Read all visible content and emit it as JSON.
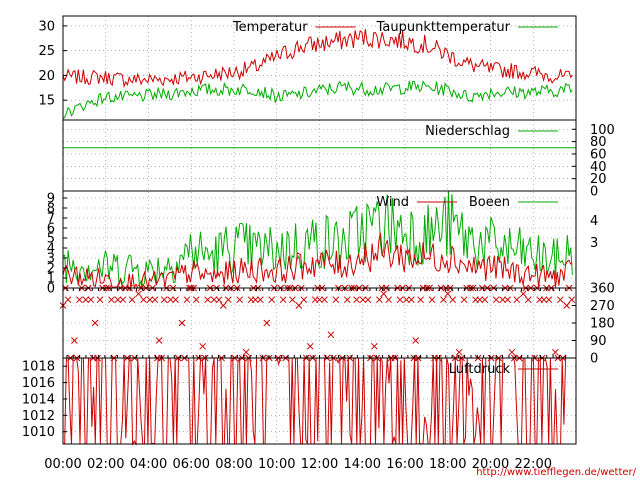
{
  "chart_data": [
    {
      "type": "line",
      "panel": "temperature",
      "title": "",
      "xlabel": "",
      "ylabel": "",
      "ylim": [
        11,
        32
      ],
      "yticks": [
        "15",
        "20",
        "25",
        "30"
      ],
      "grid": true,
      "legend_placement": "top-right",
      "x": [
        "00:00",
        "01:00",
        "02:00",
        "03:00",
        "04:00",
        "05:00",
        "06:00",
        "07:00",
        "08:00",
        "09:00",
        "10:00",
        "11:00",
        "12:00",
        "13:00",
        "14:00",
        "15:00",
        "16:00",
        "17:00",
        "18:00",
        "19:00",
        "20:00",
        "21:00",
        "22:00",
        "23:00",
        "23:50"
      ],
      "series": [
        {
          "name": "Temperatur",
          "color": "#cc0000",
          "values": [
            19.5,
            19.5,
            19.5,
            19.0,
            19.0,
            19.2,
            19.5,
            20.0,
            20.5,
            21.5,
            23.5,
            25.5,
            26.2,
            26.8,
            27.5,
            27.2,
            26.8,
            26.0,
            24.0,
            22.0,
            21.0,
            20.8,
            20.3,
            19.8,
            19.2
          ]
        },
        {
          "name": "Taupunkttemperatur",
          "color": "#00aa00",
          "values": [
            12.0,
            14.0,
            15.5,
            15.5,
            15.8,
            16.2,
            16.8,
            17.0,
            17.0,
            17.2,
            15.5,
            16.0,
            16.8,
            17.5,
            17.2,
            17.0,
            17.5,
            17.5,
            17.0,
            15.5,
            16.5,
            16.5,
            16.5,
            16.8,
            17.2
          ]
        }
      ]
    },
    {
      "type": "line",
      "panel": "precipitation",
      "title": "",
      "xlabel": "",
      "ylabel": "",
      "ylim": [
        0,
        115
      ],
      "yticks": [
        "0",
        "20",
        "40",
        "60",
        "80",
        "100"
      ],
      "grid": true,
      "legend_placement": "top-right",
      "series": [
        {
          "name": "Niederschlag",
          "color": "#00aa00",
          "constant_value": 70
        }
      ]
    },
    {
      "type": "line",
      "panel": "wind",
      "title": "",
      "xlabel": "",
      "ylabel": "",
      "ylim": [
        0,
        9.7
      ],
      "yticks": [
        "0",
        "1",
        "2",
        "3",
        "4",
        "5",
        "6",
        "7",
        "8",
        "9"
      ],
      "yticks_right": [
        "3",
        "4"
      ],
      "grid": true,
      "legend_placement": "top-right",
      "x": [
        "00:00",
        "01:00",
        "02:00",
        "03:00",
        "04:00",
        "05:00",
        "06:00",
        "07:00",
        "08:00",
        "09:00",
        "10:00",
        "11:00",
        "12:00",
        "13:00",
        "14:00",
        "15:00",
        "16:00",
        "17:00",
        "18:00",
        "19:00",
        "20:00",
        "21:00",
        "22:00",
        "23:00",
        "23:50"
      ],
      "series": [
        {
          "name": "Wind",
          "color": "#cc0000",
          "values": [
            1.2,
            1.0,
            0.8,
            0.6,
            0.5,
            0.8,
            1.5,
            1.0,
            1.5,
            1.8,
            1.5,
            2.0,
            2.5,
            2.0,
            3.0,
            3.5,
            3.0,
            2.8,
            3.2,
            2.0,
            2.0,
            1.5,
            1.2,
            1.0,
            1.5
          ]
        },
        {
          "name": "Boeen",
          "color": "#00aa00",
          "values": [
            2.5,
            2.2,
            1.8,
            2.0,
            1.5,
            2.2,
            3.5,
            3.0,
            4.0,
            3.5,
            3.5,
            4.0,
            4.5,
            4.0,
            5.5,
            6.0,
            5.5,
            5.0,
            6.0,
            4.5,
            4.0,
            3.5,
            3.0,
            2.5,
            3.5
          ]
        }
      ]
    },
    {
      "type": "scatter",
      "panel": "wind-direction",
      "title": "",
      "xlabel": "",
      "ylabel": "",
      "ylim": [
        0,
        360
      ],
      "yticks_right": [
        "0",
        "90",
        "180",
        "270",
        "360"
      ],
      "grid": true,
      "legend_placement": "none",
      "marker": "x",
      "color": "#cc0000",
      "x": [
        "00:00",
        "00:30",
        "01:00",
        "01:30",
        "02:00",
        "02:30",
        "03:00",
        "03:30",
        "04:00",
        "04:30",
        "05:00",
        "05:30",
        "06:00",
        "06:30",
        "07:00",
        "07:30",
        "08:00",
        "08:30",
        "09:00",
        "09:30",
        "10:00",
        "10:30",
        "11:00",
        "11:30",
        "12:00",
        "12:30",
        "13:00",
        "13:30",
        "14:00",
        "14:30",
        "15:00",
        "15:30",
        "16:00",
        "16:30",
        "17:00",
        "17:30",
        "18:00",
        "18:30",
        "19:00",
        "19:30",
        "20:00",
        "20:30",
        "21:00",
        "21:30",
        "22:00",
        "22:30",
        "23:00",
        "23:30"
      ],
      "values": [
        270,
        90,
        300,
        180,
        360,
        300,
        0,
        330,
        300,
        90,
        300,
        180,
        360,
        60,
        300,
        270,
        0,
        30,
        300,
        180,
        0,
        360,
        270,
        60,
        300,
        120,
        0,
        360,
        300,
        60,
        330,
        0,
        300,
        90,
        360,
        0,
        330,
        30,
        360,
        300,
        0,
        300,
        30,
        330,
        0,
        300,
        30,
        270
      ]
    },
    {
      "type": "line",
      "panel": "pressure",
      "title": "",
      "xlabel": "",
      "ylabel": "",
      "ylim": [
        1008.5,
        1019
      ],
      "yticks": [
        "1010",
        "1012",
        "1014",
        "1016",
        "1018"
      ],
      "grid": true,
      "legend_placement": "top-right",
      "x": [
        "00:00",
        "01:00",
        "02:00",
        "03:00",
        "04:00",
        "05:00",
        "06:00",
        "07:00",
        "08:00",
        "09:00",
        "10:00",
        "11:00",
        "12:00",
        "13:00",
        "14:00",
        "15:00",
        "16:00",
        "17:00",
        "18:00",
        "19:00",
        "20:00",
        "21:00",
        "22:00",
        "23:00",
        "23:50"
      ],
      "series": [
        {
          "name": "Luftdruck",
          "color": "#cc0000",
          "values": [
            1011.6,
            1011.4,
            1011.5,
            1011.3,
            1011.6,
            1011.7,
            1011.6,
            1011.8,
            1012.1,
            1012.2,
            1012.0,
            1011.8,
            1011.5,
            1011.0,
            1010.7,
            1010.4,
            1010.1,
            1010.0,
            1010.1,
            1010.3,
            1010.6,
            1010.9,
            1010.7,
            1010.4,
            1009.8
          ]
        }
      ]
    }
  ],
  "x_axis": {
    "tick_labels": [
      "00:00",
      "02:00",
      "04:00",
      "06:00",
      "08:00",
      "10:00",
      "12:00",
      "14:00",
      "16:00",
      "18:00",
      "20:00",
      "22:00"
    ]
  },
  "source_url": "http://www.tiefflegen.de/wetter/"
}
